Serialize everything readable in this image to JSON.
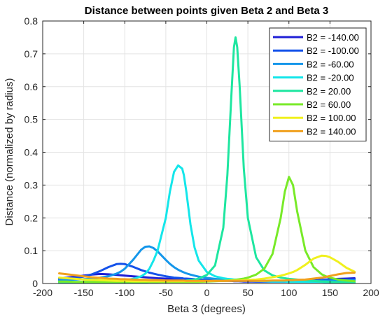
{
  "chart_data": {
    "type": "line",
    "title": "Distance between points given Beta 2 and Beta 3",
    "xlabel": "Beta 3 (degrees)",
    "ylabel": "Distance (normalized by radius)",
    "xlim": [
      -200,
      200
    ],
    "ylim": [
      0,
      0.8
    ],
    "xticks": [
      -200,
      -150,
      -100,
      -50,
      0,
      50,
      100,
      150,
      200
    ],
    "xtick_labels": [
      "-200",
      "-150",
      "-100",
      "-50",
      "0",
      "50",
      "100",
      "150",
      "200"
    ],
    "yticks": [
      0,
      0.1,
      0.2,
      0.3,
      0.4,
      0.5,
      0.6,
      0.7,
      0.8
    ],
    "ytick_labels": [
      "0",
      "0.1",
      "0.2",
      "0.3",
      "0.4",
      "0.5",
      "0.6",
      "0.7",
      "0.8"
    ],
    "grid": true,
    "legend_position": "top-right",
    "x": [
      -180,
      -170,
      -160,
      -150,
      -140,
      -130,
      -120,
      -110,
      -105,
      -100,
      -90,
      -80,
      -75,
      -70,
      -65,
      -60,
      -50,
      -45,
      -40,
      -35,
      -30,
      -28,
      -25,
      -20,
      -15,
      -10,
      0,
      10,
      20,
      25,
      30,
      33,
      35,
      37,
      40,
      45,
      50,
      60,
      70,
      80,
      90,
      95,
      100,
      105,
      110,
      120,
      130,
      140,
      145,
      150,
      160,
      170,
      180
    ],
    "series": [
      {
        "name": "B2 = -140.00",
        "color": "#1f1fd6",
        "values": [
          0.016,
          0.018,
          0.021,
          0.024,
          0.027,
          0.029,
          0.028,
          0.026,
          0.025,
          0.024,
          0.022,
          0.02,
          0.019,
          0.018,
          0.017,
          0.016,
          0.015,
          0.014,
          0.014,
          0.013,
          0.013,
          0.013,
          0.012,
          0.012,
          0.011,
          0.011,
          0.01,
          0.009,
          0.008,
          0.008,
          0.008,
          0.007,
          0.007,
          0.007,
          0.007,
          0.006,
          0.006,
          0.006,
          0.006,
          0.006,
          0.006,
          0.006,
          0.006,
          0.006,
          0.007,
          0.008,
          0.009,
          0.011,
          0.012,
          0.013,
          0.014,
          0.015,
          0.016
        ]
      },
      {
        "name": "B2 = -100.00",
        "color": "#1452ea",
        "values": [
          0.012,
          0.014,
          0.017,
          0.021,
          0.028,
          0.038,
          0.05,
          0.059,
          0.06,
          0.059,
          0.051,
          0.041,
          0.037,
          0.033,
          0.03,
          0.027,
          0.022,
          0.02,
          0.018,
          0.017,
          0.016,
          0.015,
          0.015,
          0.014,
          0.013,
          0.012,
          0.011,
          0.01,
          0.009,
          0.009,
          0.008,
          0.008,
          0.008,
          0.008,
          0.007,
          0.007,
          0.007,
          0.006,
          0.006,
          0.006,
          0.006,
          0.006,
          0.006,
          0.006,
          0.006,
          0.007,
          0.007,
          0.008,
          0.008,
          0.009,
          0.01,
          0.011,
          0.012
        ]
      },
      {
        "name": "B2 = -60.00",
        "color": "#1496ea",
        "values": [
          0.01,
          0.011,
          0.012,
          0.013,
          0.015,
          0.018,
          0.022,
          0.03,
          0.036,
          0.045,
          0.072,
          0.103,
          0.112,
          0.113,
          0.108,
          0.098,
          0.072,
          0.06,
          0.05,
          0.042,
          0.036,
          0.034,
          0.031,
          0.027,
          0.024,
          0.021,
          0.017,
          0.014,
          0.012,
          0.011,
          0.011,
          0.01,
          0.01,
          0.01,
          0.01,
          0.009,
          0.009,
          0.008,
          0.008,
          0.008,
          0.008,
          0.008,
          0.008,
          0.008,
          0.008,
          0.008,
          0.008,
          0.009,
          0.009,
          0.009,
          0.009,
          0.01,
          0.01
        ]
      },
      {
        "name": "B2 = -20.00",
        "color": "#14e6ea",
        "values": [
          0.004,
          0.004,
          0.004,
          0.005,
          0.005,
          0.006,
          0.007,
          0.008,
          0.009,
          0.01,
          0.014,
          0.022,
          0.03,
          0.045,
          0.07,
          0.1,
          0.2,
          0.28,
          0.34,
          0.36,
          0.35,
          0.33,
          0.28,
          0.18,
          0.11,
          0.07,
          0.035,
          0.022,
          0.016,
          0.014,
          0.013,
          0.012,
          0.012,
          0.012,
          0.011,
          0.01,
          0.009,
          0.008,
          0.007,
          0.006,
          0.006,
          0.006,
          0.005,
          0.005,
          0.005,
          0.005,
          0.005,
          0.005,
          0.004,
          0.004,
          0.004,
          0.004,
          0.004
        ]
      },
      {
        "name": "B2 = 20.00",
        "color": "#1ee6a0",
        "values": [
          0.003,
          0.003,
          0.003,
          0.003,
          0.003,
          0.003,
          0.003,
          0.003,
          0.003,
          0.004,
          0.004,
          0.004,
          0.004,
          0.005,
          0.005,
          0.005,
          0.006,
          0.006,
          0.007,
          0.007,
          0.008,
          0.008,
          0.009,
          0.01,
          0.012,
          0.015,
          0.026,
          0.055,
          0.17,
          0.33,
          0.58,
          0.72,
          0.75,
          0.72,
          0.6,
          0.35,
          0.2,
          0.08,
          0.04,
          0.025,
          0.018,
          0.016,
          0.014,
          0.013,
          0.012,
          0.01,
          0.008,
          0.006,
          0.006,
          0.005,
          0.004,
          0.004,
          0.003
        ]
      },
      {
        "name": "B2 = 60.00",
        "color": "#78ea28",
        "values": [
          0.006,
          0.006,
          0.005,
          0.005,
          0.005,
          0.005,
          0.005,
          0.005,
          0.005,
          0.005,
          0.005,
          0.005,
          0.005,
          0.005,
          0.005,
          0.005,
          0.005,
          0.005,
          0.005,
          0.005,
          0.005,
          0.005,
          0.005,
          0.005,
          0.005,
          0.005,
          0.006,
          0.007,
          0.008,
          0.009,
          0.01,
          0.011,
          0.011,
          0.012,
          0.013,
          0.015,
          0.018,
          0.027,
          0.045,
          0.09,
          0.2,
          0.28,
          0.325,
          0.3,
          0.22,
          0.1,
          0.05,
          0.028,
          0.022,
          0.018,
          0.012,
          0.009,
          0.007
        ]
      },
      {
        "name": "B2 = 100.00",
        "color": "#f0f01e",
        "values": [
          0.018,
          0.016,
          0.014,
          0.012,
          0.011,
          0.01,
          0.009,
          0.008,
          0.008,
          0.008,
          0.007,
          0.007,
          0.007,
          0.007,
          0.007,
          0.007,
          0.007,
          0.007,
          0.007,
          0.007,
          0.007,
          0.007,
          0.007,
          0.007,
          0.007,
          0.007,
          0.007,
          0.008,
          0.008,
          0.008,
          0.009,
          0.009,
          0.009,
          0.009,
          0.009,
          0.01,
          0.011,
          0.012,
          0.015,
          0.019,
          0.024,
          0.027,
          0.031,
          0.035,
          0.041,
          0.057,
          0.076,
          0.085,
          0.084,
          0.08,
          0.066,
          0.048,
          0.036
        ]
      },
      {
        "name": "B2 = 140.00",
        "color": "#f0a01e",
        "values": [
          0.031,
          0.028,
          0.025,
          0.022,
          0.019,
          0.017,
          0.015,
          0.014,
          0.013,
          0.013,
          0.012,
          0.011,
          0.011,
          0.01,
          0.01,
          0.01,
          0.009,
          0.009,
          0.009,
          0.009,
          0.009,
          0.009,
          0.008,
          0.008,
          0.008,
          0.008,
          0.008,
          0.008,
          0.008,
          0.008,
          0.008,
          0.008,
          0.008,
          0.008,
          0.008,
          0.008,
          0.008,
          0.008,
          0.008,
          0.009,
          0.009,
          0.009,
          0.01,
          0.01,
          0.011,
          0.012,
          0.015,
          0.018,
          0.02,
          0.023,
          0.028,
          0.032,
          0.033
        ]
      }
    ]
  }
}
